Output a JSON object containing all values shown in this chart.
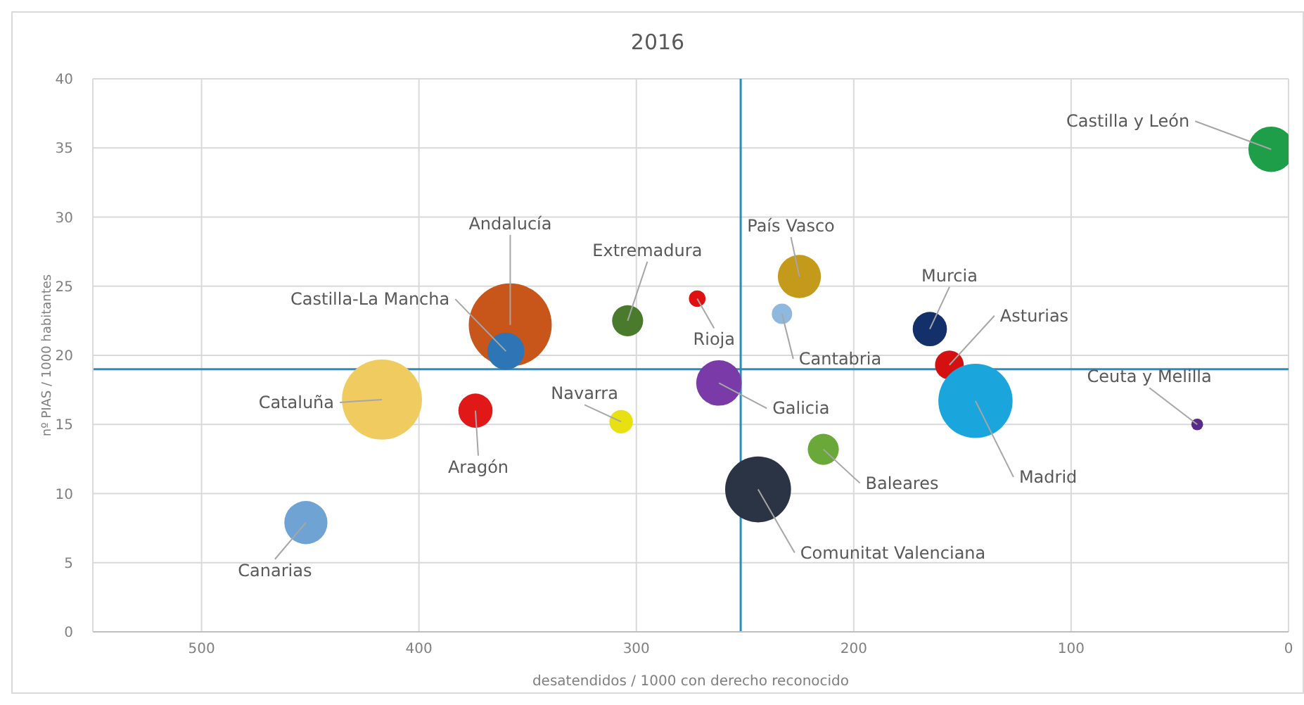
{
  "chart_data": {
    "type": "bubble",
    "title": "2016",
    "xlabel": "desatendidos / 1000 con derecho reconocido",
    "ylabel": "nº PIAS / 1000 habitantes",
    "xlim": [
      550,
      0
    ],
    "xticks": [
      500,
      400,
      300,
      200,
      100,
      0
    ],
    "ylim": [
      0,
      40
    ],
    "yticks": [
      0,
      5,
      10,
      15,
      20,
      25,
      30,
      35,
      40
    ],
    "grid": true,
    "ref_lines": [
      {
        "axis": "x",
        "value": 252,
        "color": "#2e8bc0"
      },
      {
        "axis": "y",
        "value": 19,
        "color": "#2e8bc0"
      }
    ],
    "series": [
      {
        "name": "Castilla y León",
        "color": "#1e9e48",
        "x": [
          8
        ],
        "values": [
          34.9
        ],
        "sizes": [
          0.3
        ]
      },
      {
        "name": "Andalucía",
        "color": "#c8561a",
        "x": [
          358
        ],
        "values": [
          22.2
        ],
        "sizes": [
          1
        ]
      },
      {
        "name": "Castilla-La Mancha",
        "color": "#2e75b6",
        "x": [
          360
        ],
        "values": [
          20.3
        ],
        "sizes": [
          0.2
        ]
      },
      {
        "name": "Extremadura",
        "color": "#4a7a2c",
        "x": [
          304
        ],
        "values": [
          22.5
        ],
        "sizes": [
          0.14
        ]
      },
      {
        "name": "País Vasco",
        "color": "#c49a1a",
        "x": [
          225
        ],
        "values": [
          25.7
        ],
        "sizes": [
          0.27
        ]
      },
      {
        "name": "Rioja",
        "color": "#e01010",
        "x": [
          272
        ],
        "values": [
          24.1
        ],
        "sizes": [
          0.04
        ]
      },
      {
        "name": "Cantabria",
        "color": "#8fb8de",
        "x": [
          233
        ],
        "values": [
          23.0
        ],
        "sizes": [
          0.06
        ]
      },
      {
        "name": "Murcia",
        "color": "#14306a",
        "x": [
          165
        ],
        "values": [
          21.9
        ],
        "sizes": [
          0.17
        ]
      },
      {
        "name": "Asturias",
        "color": "#d41010",
        "x": [
          156
        ],
        "values": [
          19.3
        ],
        "sizes": [
          0.12
        ]
      },
      {
        "name": "Madrid",
        "color": "#1aa6dc",
        "x": [
          144
        ],
        "values": [
          16.7
        ],
        "sizes": [
          0.8
        ]
      },
      {
        "name": "Ceuta y Melilla",
        "color": "#5a2a8a",
        "x": [
          42
        ],
        "values": [
          15.0
        ],
        "sizes": [
          0.02
        ]
      },
      {
        "name": "Galicia",
        "color": "#7a3aa8",
        "x": [
          262
        ],
        "values": [
          18.0
        ],
        "sizes": [
          0.3
        ]
      },
      {
        "name": "Baleares",
        "color": "#6aa83a",
        "x": [
          214
        ],
        "values": [
          13.2
        ],
        "sizes": [
          0.14
        ]
      },
      {
        "name": "Comunitat Valenciana",
        "color": "#2a3444",
        "x": [
          244
        ],
        "values": [
          10.3
        ],
        "sizes": [
          0.63
        ]
      },
      {
        "name": "Cataluña",
        "color": "#f0cc60",
        "x": [
          417
        ],
        "values": [
          16.8
        ],
        "sizes": [
          0.93
        ]
      },
      {
        "name": "Aragón",
        "color": "#e01818",
        "x": [
          374
        ],
        "values": [
          16.0
        ],
        "sizes": [
          0.17
        ]
      },
      {
        "name": "Navarra",
        "color": "#e8e010",
        "x": [
          307
        ],
        "values": [
          15.2
        ],
        "sizes": [
          0.08
        ]
      },
      {
        "name": "Canarias",
        "color": "#6fa3d4",
        "x": [
          452
        ],
        "values": [
          7.9
        ],
        "sizes": [
          0.27
        ]
      }
    ]
  }
}
